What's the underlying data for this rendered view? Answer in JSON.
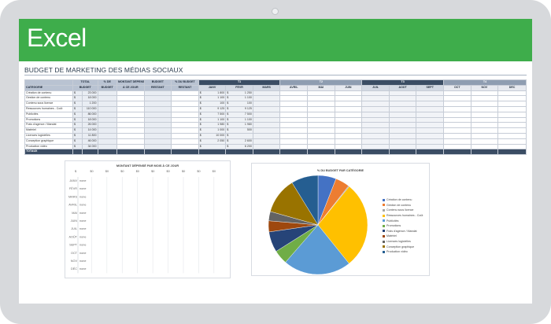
{
  "app": {
    "name": "Excel"
  },
  "sheet_title": "BUDGET DE MARKETING DES MÉDIAS SOCIAUX",
  "headers": {
    "categorie": "CATÉGORIE",
    "total": "TOTAL",
    "budget": "BUDGET",
    "pct_budget_top": "% DE",
    "pct_budget_bottom": "BUDGET",
    "montant_top": "MONTANT DÉPENSÉ",
    "montant_bottom": "À CE JOUR",
    "budget_top": "BUDGET",
    "budget_bottom": "RESTANT",
    "pct_restant_top": "% DU BUDGET",
    "pct_restant_bottom": "RESTANT"
  },
  "quarters": [
    "T1",
    "T2",
    "T3",
    "T4"
  ],
  "months": [
    "JANV",
    "FÉVR",
    "MARS",
    "AVRIL",
    "MAI",
    "JUIN",
    "JUIL",
    "AOÛT",
    "SEPT",
    "OCT",
    "NOV",
    "DÉC"
  ],
  "currency": "$",
  "rows": [
    {
      "category": "Création de contenu",
      "total": "23 000",
      "janv": "1 800",
      "fevr": "1 250"
    },
    {
      "category": "Gestion de contenu",
      "total": "18 000",
      "janv": "1 100",
      "fevr": "1 100"
    },
    {
      "category": "Contenu sous licence",
      "total": "1 200",
      "janv": "100",
      "fevr": "100"
    },
    {
      "category": "Ressources humaines - Coût",
      "total": "110 000",
      "janv": "9 125",
      "fevr": "9 125"
    },
    {
      "category": "Publicités",
      "total": "86 000",
      "janv": "7 500",
      "fevr": "7 500"
    },
    {
      "category": "Promotions",
      "total": "18 000",
      "janv": "1 100",
      "fevr": "1 100"
    },
    {
      "category": "Frais d'agence / Mandat",
      "total": "26 000",
      "janv": "1 980",
      "fevr": "1 980"
    },
    {
      "category": "Matériel",
      "total": "14 000",
      "janv": "1 000",
      "fevr": "500"
    },
    {
      "category": "Licences logicielles",
      "total": "11 800",
      "janv": "10 000",
      "fevr": ""
    },
    {
      "category": "Conception graphique",
      "total": "46 000",
      "janv": "2 050",
      "fevr": "2 600"
    },
    {
      "category": "Production vidéo",
      "total": "34 000",
      "janv": "",
      "fevr": "6 200"
    }
  ],
  "totals_label": "TOTAUX",
  "bar_chart": {
    "title": "MONTANT DÉPENSÉ PAR MOIS À CE JOUR",
    "ticks": [
      "$",
      "$0",
      "$0",
      "$0",
      "$0",
      "$0",
      "$0",
      "$0",
      "$0",
      "$0"
    ],
    "months": [
      "JANV",
      "FÉVR",
      "MARS",
      "AVRIL",
      "MAI",
      "JUIN",
      "JUIL",
      "AOÛT",
      "SEPT",
      "OCT",
      "NOV",
      "DÉC"
    ],
    "value_label": "none"
  },
  "chart_data": {
    "type": "pie",
    "title": "% DU BUDGET PAR CATÉGORIE",
    "legend_position": "right",
    "categories": [
      "Création de contenu",
      "Gestion de contenu",
      "Contenu sous licence",
      "Ressources humaines - Coût",
      "Publicités",
      "Promotions",
      "Frais d'agence / Mandat",
      "Matériel",
      "Licences logicielles",
      "Conception graphique",
      "Production vidéo"
    ],
    "values": [
      23000,
      18000,
      1200,
      110000,
      86000,
      18000,
      26000,
      14000,
      11800,
      46000,
      34000
    ],
    "colors": [
      "#4472c4",
      "#ed7d31",
      "#a5a5a5",
      "#ffc000",
      "#5b9bd5",
      "#70ad47",
      "#264478",
      "#9e480e",
      "#636363",
      "#997300",
      "#255e91"
    ]
  }
}
